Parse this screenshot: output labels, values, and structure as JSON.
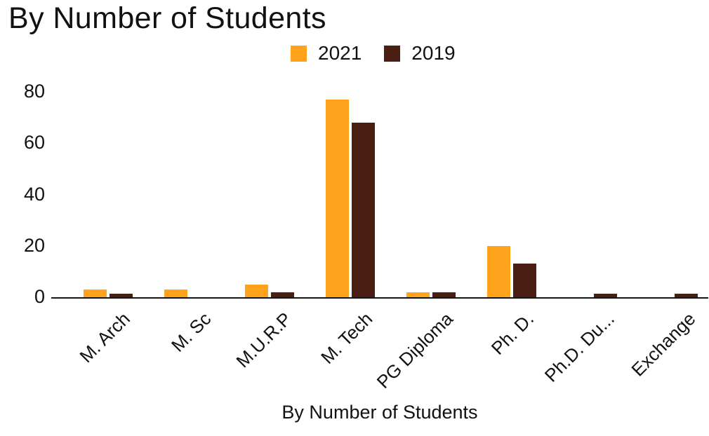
{
  "page": {
    "background": "#ffffff",
    "text_color": "#111111",
    "axis_color": "#161616"
  },
  "chart_data": {
    "type": "bar",
    "title": "By Number of Students",
    "xlabel": "By Number of Students",
    "ylabel": "",
    "categories": [
      "M. Arch",
      "M. Sc",
      "M.U.R.P",
      "M. Tech",
      "PG Diploma",
      "Ph. D.",
      "Ph.D. Du...",
      "Exchange"
    ],
    "series": [
      {
        "name": "2021",
        "color": "#FFA21C",
        "values": [
          3,
          3,
          5,
          77,
          2,
          20,
          0,
          0
        ]
      },
      {
        "name": "2019",
        "color": "#4A1E12",
        "values": [
          1.5,
          0,
          2,
          68,
          2,
          13,
          1.5,
          1.5
        ]
      }
    ],
    "ylim": [
      0,
      80
    ],
    "yticks": [
      0,
      20,
      40,
      60,
      80
    ],
    "grid": false,
    "legend_position": "top"
  }
}
